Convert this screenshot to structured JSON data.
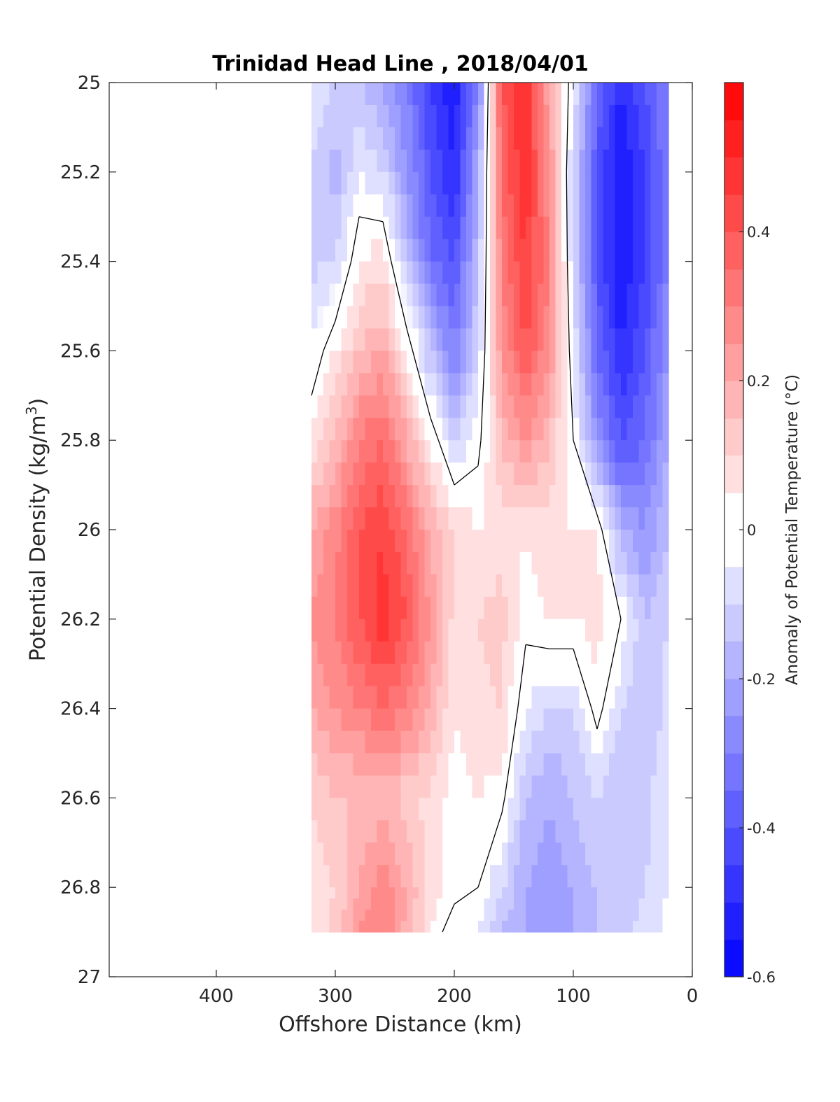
{
  "chart_data": {
    "type": "heatmap",
    "subtype": "filled-contour",
    "title": "Trinidad Head Line , 2018/04/01",
    "xlabel": "Offshore Distance (km)",
    "ylabel": "Potential Density (kg/m",
    "ylabel_superscript": "3",
    "ylabel_close": ")",
    "xlim": [
      490,
      0
    ],
    "x_reversed": true,
    "xticks": [
      400,
      300,
      200,
      100,
      0
    ],
    "ylim": [
      25,
      27
    ],
    "y_reversed": true,
    "yticks": [
      "25",
      "25.2",
      "25.4",
      "25.6",
      "25.8",
      "26",
      "26.2",
      "26.4",
      "26.6",
      "26.8",
      "27"
    ],
    "colorbar": {
      "label": "Anomaly of Potential Temperature (°C)",
      "range": [
        -0.6,
        0.6
      ],
      "levels": 24,
      "ticks": [
        "0.4",
        "0.2",
        "0",
        "-0.2",
        "-0.4",
        "-0.6"
      ],
      "colormap": "blue-white-red",
      "cold_color": "#0000ff",
      "warm_color": "#ff0000"
    },
    "contour_line_value": 0,
    "grid": false,
    "x": [
      320,
      300,
      280,
      260,
      240,
      220,
      200,
      180,
      160,
      140,
      120,
      100,
      80,
      60,
      40,
      20
    ],
    "y": [
      25.0,
      25.2,
      25.4,
      25.6,
      25.8,
      26.0,
      26.2,
      26.4,
      26.6,
      26.8,
      26.9
    ],
    "z": [
      [
        -0.05,
        -0.1,
        -0.15,
        -0.2,
        -0.3,
        -0.45,
        -0.55,
        -0.3,
        0.4,
        0.5,
        0.2,
        -0.05,
        -0.35,
        -0.5,
        -0.4,
        -0.3
      ],
      [
        -0.1,
        -0.18,
        -0.05,
        -0.1,
        -0.25,
        -0.4,
        -0.5,
        -0.2,
        0.35,
        0.5,
        0.25,
        -0.1,
        -0.4,
        -0.55,
        -0.45,
        -0.3
      ],
      [
        -0.12,
        -0.1,
        0.05,
        0.08,
        -0.15,
        -0.35,
        -0.4,
        -0.15,
        0.3,
        0.45,
        0.3,
        -0.1,
        -0.4,
        -0.55,
        -0.45,
        -0.3
      ],
      [
        -0.05,
        0.05,
        0.15,
        0.2,
        0.05,
        -0.15,
        -0.3,
        -0.1,
        0.25,
        0.4,
        0.25,
        -0.05,
        -0.35,
        -0.5,
        -0.4,
        -0.25
      ],
      [
        0.05,
        0.15,
        0.3,
        0.35,
        0.2,
        0.05,
        -0.1,
        -0.02,
        0.15,
        0.25,
        0.15,
        0.0,
        -0.25,
        -0.4,
        -0.35,
        -0.2
      ],
      [
        0.2,
        0.28,
        0.4,
        0.45,
        0.35,
        0.18,
        0.1,
        0.05,
        0.08,
        0.05,
        0.08,
        0.05,
        0.05,
        -0.2,
        -0.25,
        -0.15
      ],
      [
        0.25,
        0.3,
        0.4,
        0.48,
        0.4,
        0.25,
        0.08,
        0.1,
        0.12,
        0.02,
        0.05,
        0.05,
        0.08,
        0.0,
        -0.15,
        -0.1
      ],
      [
        0.2,
        0.25,
        0.3,
        0.35,
        0.3,
        0.2,
        0.05,
        0.08,
        0.1,
        -0.05,
        -0.1,
        -0.1,
        0.03,
        -0.1,
        -0.15,
        -0.08
      ],
      [
        0.1,
        0.15,
        0.15,
        0.18,
        0.12,
        0.08,
        0.03,
        0.05,
        0.02,
        -0.15,
        -0.2,
        -0.15,
        -0.1,
        -0.15,
        -0.12,
        -0.05
      ],
      [
        0.05,
        0.1,
        0.2,
        0.28,
        0.2,
        0.08,
        0.03,
        0.0,
        -0.1,
        -0.2,
        -0.25,
        -0.2,
        -0.15,
        -0.15,
        -0.1,
        -0.05
      ],
      [
        0.05,
        0.12,
        0.25,
        0.3,
        0.18,
        0.05,
        -0.05,
        -0.05,
        -0.15,
        -0.2,
        -0.25,
        -0.2,
        -0.15,
        -0.12,
        -0.08,
        -0.03
      ]
    ]
  }
}
